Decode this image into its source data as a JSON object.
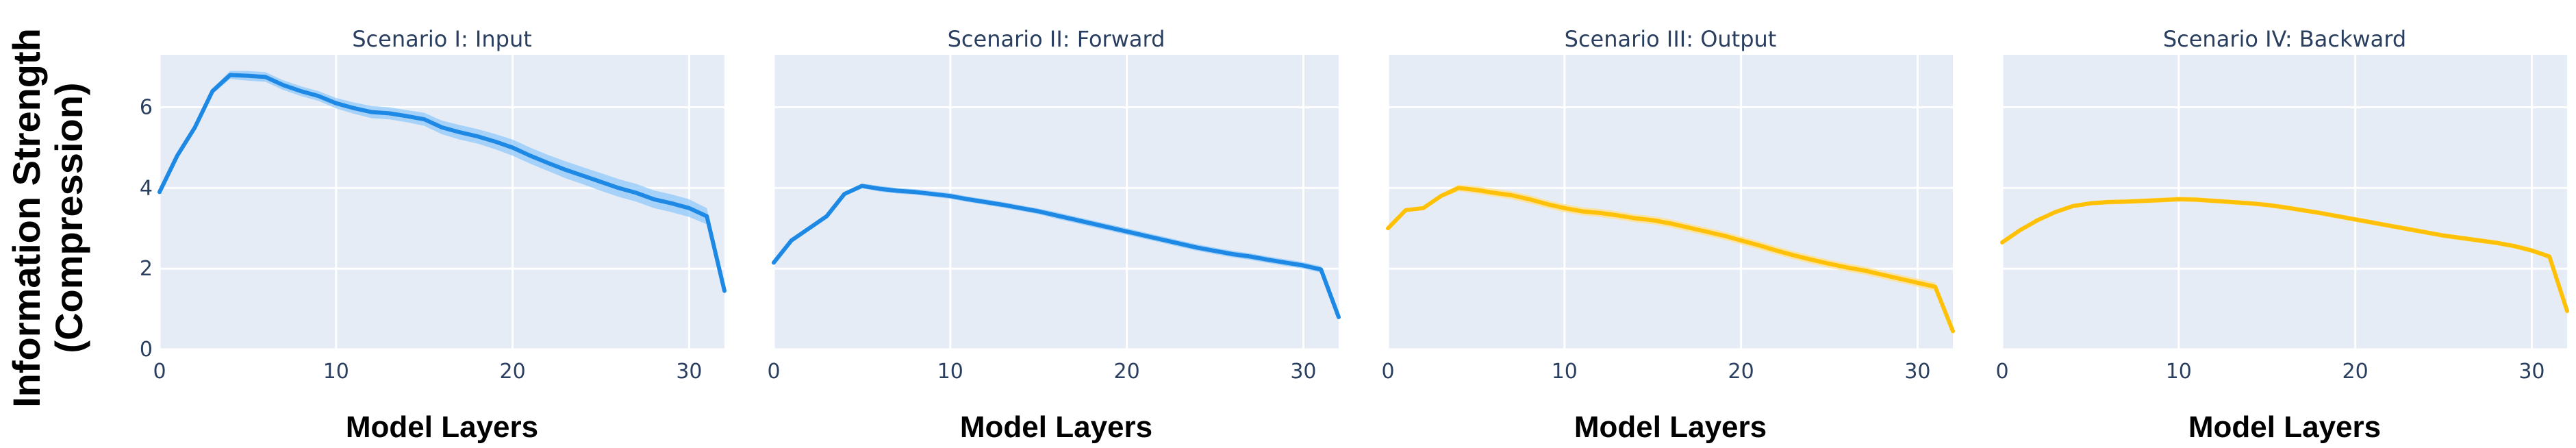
{
  "ylabel_line1": "Information Strength",
  "ylabel_line2": "(Compression)",
  "chart_data": [
    {
      "type": "line",
      "title": "Scenario I: Input",
      "xlabel": "Model Layers",
      "xlim": [
        0,
        32
      ],
      "ylim": [
        0,
        7.3
      ],
      "color": "#1E88E5",
      "band_color": "#90CAF9",
      "x": [
        0,
        1,
        2,
        3,
        4,
        5,
        6,
        7,
        8,
        9,
        10,
        11,
        12,
        13,
        14,
        15,
        16,
        17,
        18,
        19,
        20,
        21,
        22,
        23,
        24,
        25,
        26,
        27,
        28,
        29,
        30,
        31,
        32
      ],
      "y": [
        3.9,
        4.8,
        5.5,
        6.4,
        6.8,
        6.78,
        6.75,
        6.55,
        6.4,
        6.28,
        6.1,
        5.98,
        5.88,
        5.85,
        5.78,
        5.7,
        5.5,
        5.38,
        5.28,
        5.15,
        5.0,
        4.8,
        4.62,
        4.45,
        4.3,
        4.15,
        4.0,
        3.88,
        3.72,
        3.62,
        3.5,
        3.3,
        1.45
      ],
      "band": [
        0.0,
        0.03,
        0.05,
        0.07,
        0.1,
        0.12,
        0.12,
        0.12,
        0.12,
        0.12,
        0.13,
        0.14,
        0.15,
        0.15,
        0.15,
        0.16,
        0.17,
        0.18,
        0.18,
        0.19,
        0.2,
        0.2,
        0.2,
        0.21,
        0.21,
        0.22,
        0.22,
        0.22,
        0.22,
        0.22,
        0.22,
        0.2,
        0.1
      ],
      "x_ticks": [
        0,
        10,
        20,
        30
      ],
      "y_ticks": [
        0,
        2,
        4,
        6
      ]
    },
    {
      "type": "line",
      "title": "Scenario II: Forward",
      "xlabel": "Model Layers",
      "xlim": [
        0,
        32
      ],
      "ylim": [
        0,
        7.3
      ],
      "color": "#1E88E5",
      "band_color": "#90CAF9",
      "x": [
        0,
        1,
        2,
        3,
        4,
        5,
        6,
        7,
        8,
        9,
        10,
        11,
        12,
        13,
        14,
        15,
        16,
        17,
        18,
        19,
        20,
        21,
        22,
        23,
        24,
        25,
        26,
        27,
        28,
        29,
        30,
        31,
        32
      ],
      "y": [
        2.15,
        2.7,
        3.0,
        3.3,
        3.85,
        4.05,
        3.98,
        3.93,
        3.9,
        3.85,
        3.8,
        3.72,
        3.65,
        3.58,
        3.5,
        3.42,
        3.32,
        3.22,
        3.12,
        3.02,
        2.92,
        2.82,
        2.72,
        2.62,
        2.52,
        2.44,
        2.36,
        2.3,
        2.22,
        2.15,
        2.08,
        1.98,
        0.8
      ],
      "band": [
        0.0,
        0.02,
        0.03,
        0.04,
        0.05,
        0.06,
        0.07,
        0.07,
        0.07,
        0.07,
        0.07,
        0.07,
        0.07,
        0.07,
        0.07,
        0.07,
        0.08,
        0.08,
        0.08,
        0.08,
        0.08,
        0.08,
        0.08,
        0.08,
        0.08,
        0.08,
        0.08,
        0.08,
        0.08,
        0.08,
        0.08,
        0.08,
        0.05
      ],
      "x_ticks": [
        0,
        10,
        20,
        30
      ],
      "y_ticks": [
        0,
        2,
        4,
        6
      ]
    },
    {
      "type": "line",
      "title": "Scenario III: Output",
      "xlabel": "Model Layers",
      "xlim": [
        0,
        32
      ],
      "ylim": [
        0,
        7.3
      ],
      "color": "#FFC107",
      "band_color": "#FFE08A",
      "x": [
        0,
        1,
        2,
        3,
        4,
        5,
        6,
        7,
        8,
        9,
        10,
        11,
        12,
        13,
        14,
        15,
        16,
        17,
        18,
        19,
        20,
        21,
        22,
        23,
        24,
        25,
        26,
        27,
        28,
        29,
        30,
        31,
        32
      ],
      "y": [
        3.0,
        3.45,
        3.5,
        3.8,
        4.0,
        3.95,
        3.88,
        3.82,
        3.72,
        3.6,
        3.5,
        3.42,
        3.38,
        3.32,
        3.25,
        3.2,
        3.12,
        3.02,
        2.92,
        2.82,
        2.7,
        2.58,
        2.45,
        2.33,
        2.22,
        2.12,
        2.03,
        1.95,
        1.85,
        1.75,
        1.65,
        1.55,
        0.45
      ],
      "band": [
        0.0,
        0.03,
        0.04,
        0.06,
        0.08,
        0.09,
        0.1,
        0.1,
        0.1,
        0.1,
        0.1,
        0.1,
        0.1,
        0.1,
        0.1,
        0.1,
        0.1,
        0.1,
        0.1,
        0.1,
        0.1,
        0.1,
        0.1,
        0.1,
        0.1,
        0.1,
        0.1,
        0.1,
        0.1,
        0.1,
        0.1,
        0.1,
        0.05
      ],
      "x_ticks": [
        0,
        10,
        20,
        30
      ],
      "y_ticks": [
        0,
        2,
        4,
        6
      ]
    },
    {
      "type": "line",
      "title": "Scenario IV: Backward",
      "xlabel": "Model Layers",
      "xlim": [
        0,
        32
      ],
      "ylim": [
        0,
        7.3
      ],
      "color": "#FFC107",
      "band_color": "#FFE08A",
      "x": [
        0,
        1,
        2,
        3,
        4,
        5,
        6,
        7,
        8,
        9,
        10,
        11,
        12,
        13,
        14,
        15,
        16,
        17,
        18,
        19,
        20,
        21,
        22,
        23,
        24,
        25,
        26,
        27,
        28,
        29,
        30,
        31,
        32
      ],
      "y": [
        2.65,
        2.95,
        3.2,
        3.4,
        3.55,
        3.62,
        3.65,
        3.66,
        3.68,
        3.7,
        3.72,
        3.71,
        3.68,
        3.65,
        3.62,
        3.58,
        3.52,
        3.45,
        3.38,
        3.3,
        3.22,
        3.14,
        3.06,
        2.98,
        2.9,
        2.82,
        2.76,
        2.7,
        2.64,
        2.56,
        2.45,
        2.3,
        0.95
      ],
      "band": [
        0.0,
        0.02,
        0.03,
        0.04,
        0.05,
        0.05,
        0.06,
        0.06,
        0.06,
        0.06,
        0.06,
        0.06,
        0.06,
        0.06,
        0.06,
        0.06,
        0.06,
        0.06,
        0.06,
        0.06,
        0.06,
        0.06,
        0.06,
        0.06,
        0.06,
        0.06,
        0.06,
        0.06,
        0.06,
        0.06,
        0.06,
        0.06,
        0.05
      ],
      "x_ticks": [
        0,
        10,
        20,
        30
      ],
      "y_ticks": [
        0,
        2,
        4,
        6
      ]
    }
  ]
}
